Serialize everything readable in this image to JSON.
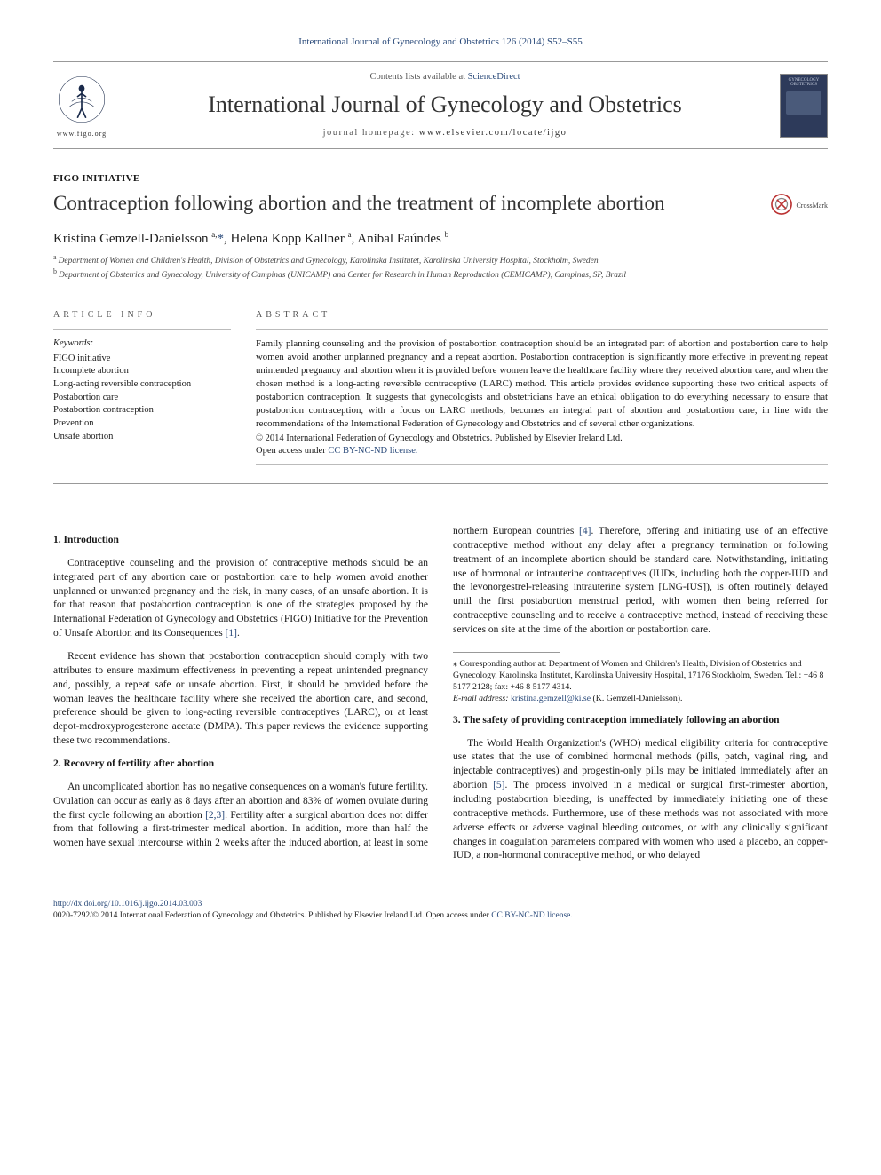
{
  "journal_ref": "International Journal of Gynecology and Obstetrics 126 (2014) S52–S55",
  "masthead": {
    "contents_prefix": "Contents lists available at ",
    "contents_link": "ScienceDirect",
    "journal_title": "International Journal of Gynecology and Obstetrics",
    "homepage_label": "journal homepage: ",
    "homepage_url": "www.elsevier.com/locate/ijgo",
    "figo_url": "www.figo.org",
    "cover_line1": "GYNECOLOGY",
    "cover_line2": "OBSTETRICS"
  },
  "article": {
    "type": "FIGO INITIATIVE",
    "title": "Contraception following abortion and the treatment of incomplete abortion",
    "crossmark_label": "CrossMark",
    "authors_html": "Kristina Gemzell-Danielsson <sup>a,</sup><span class='corr'>*</span>, Helena Kopp Kallner <sup>a</sup>, Anibal Faúndes <sup>b</sup>",
    "affiliations": [
      {
        "marker": "a",
        "text": "Department of Women and Children's Health, Division of Obstetrics and Gynecology, Karolinska Institutet, Karolinska University Hospital, Stockholm, Sweden"
      },
      {
        "marker": "b",
        "text": "Department of Obstetrics and Gynecology, University of Campinas (UNICAMP) and Center for Research in Human Reproduction (CEMICAMP), Campinas, SP, Brazil"
      }
    ]
  },
  "article_info": {
    "heading": "ARTICLE INFO",
    "keywords_label": "Keywords:",
    "keywords": [
      "FIGO initiative",
      "Incomplete abortion",
      "Long-acting reversible contraception",
      "Postabortion care",
      "Postabortion contraception",
      "Prevention",
      "Unsafe abortion"
    ]
  },
  "abstract": {
    "heading": "ABSTRACT",
    "text": "Family planning counseling and the provision of postabortion contraception should be an integrated part of abortion and postabortion care to help women avoid another unplanned pregnancy and a repeat abortion. Postabortion contraception is significantly more effective in preventing repeat unintended pregnancy and abortion when it is provided before women leave the healthcare facility where they received abortion care, and when the chosen method is a long-acting reversible contraceptive (LARC) method. This article provides evidence supporting these two critical aspects of postabortion contraception. It suggests that gynecologists and obstetricians have an ethical obligation to do everything necessary to ensure that postabortion contraception, with a focus on LARC methods, becomes an integral part of abortion and postabortion care, in line with the recommendations of the International Federation of Gynecology and Obstetrics and of several other organizations.",
    "copyright": "© 2014 International Federation of Gynecology and Obstetrics. Published by Elsevier Ireland Ltd.",
    "open_access_prefix": "Open access under ",
    "open_access_link": "CC BY-NC-ND license."
  },
  "sections": {
    "s1": {
      "heading": "1. Introduction",
      "p1": "Contraceptive counseling and the provision of contraceptive methods should be an integrated part of any abortion care or postabortion care to help women avoid another unplanned or unwanted pregnancy and the risk, in many cases, of an unsafe abortion. It is for that reason that postabortion contraception is one of the strategies proposed by the International Federation of Gynecology and Obstetrics (FIGO) Initiative for the Prevention of Unsafe Abortion and its Consequences ",
      "p1_ref": "[1]",
      "p1_tail": ".",
      "p2": "Recent evidence has shown that postabortion contraception should comply with two attributes to ensure maximum effectiveness in preventing a repeat unintended pregnancy and, possibly, a repeat safe or unsafe abortion. First, it should be provided before the woman leaves the healthcare facility where she received the abortion care, and second, preference should be given to long-acting reversible contraceptives (LARC), or at least depot-medroxyprogesterone acetate (DMPA). This paper reviews the evidence supporting these two recommendations."
    },
    "s2": {
      "heading": "2. Recovery of fertility after abortion",
      "p1_a": "An uncomplicated abortion has no negative consequences on a woman's future fertility. Ovulation can occur as early as 8 days after an abortion and 83% of women ovulate during the first cycle following an abortion ",
      "p1_ref1": "[2,3]",
      "p1_b": ". Fertility after a surgical abortion does not differ from that following a first-trimester medical abortion. In addition, more than half the women have sexual intercourse within 2 weeks after the induced abortion, at least in some northern European countries ",
      "p1_ref2": "[4]",
      "p1_c": ". Therefore, offering and initiating use of an effective contraceptive method without any delay after a pregnancy termination or following treatment of an incomplete abortion should be standard care. Notwithstanding, initiating use of hormonal or intrauterine contraceptives (IUDs, including both the copper-IUD and the levonorgestrel-releasing intrauterine system [LNG-IUS]), is often routinely delayed until the first postabortion menstrual period, with women then being referred for contraceptive counseling and to receive a contraceptive method, instead of receiving these services on site at the time of the abortion or postabortion care."
    },
    "s3": {
      "heading": "3. The safety of providing contraception immediately following an abortion",
      "p1_a": "The World Health Organization's (WHO) medical eligibility criteria for contraceptive use states that the use of combined hormonal methods (pills, patch, vaginal ring, and injectable contraceptives) and progestin-only pills may be initiated immediately after an abortion ",
      "p1_ref": "[5]",
      "p1_b": ". The process involved in a medical or surgical first-trimester abortion, including postabortion bleeding, is unaffected by immediately initiating one of these contraceptive methods. Furthermore, use of these methods was not associated with more adverse effects or adverse vaginal bleeding outcomes, or with any clinically significant changes in coagulation parameters compared with women who used a placebo, an copper-IUD, a non-hormonal contraceptive method, or who delayed"
    }
  },
  "footnotes": {
    "corr_label": "⁎ Corresponding author at: Department of Women and Children's Health, Division of Obstetrics and Gynecology, Karolinska Institutet, Karolinska University Hospital, 17176 Stockholm, Sweden. Tel.: +46 8 5177 2128; fax: +46 8 5177 4314.",
    "email_label": "E-mail address: ",
    "email": "kristina.gemzell@ki.se",
    "email_tail": " (K. Gemzell-Danielsson)."
  },
  "footer": {
    "doi": "http://dx.doi.org/10.1016/j.ijgo.2014.03.003",
    "issn_line_a": "0020-7292/© 2014 International Federation of Gynecology and Obstetrics. Published by Elsevier Ireland Ltd. ",
    "issn_oa_prefix": "Open access under ",
    "issn_oa_link": "CC BY-NC-ND license."
  },
  "colors": {
    "link": "#2a4a7a",
    "text": "#1a1a1a",
    "rule": "#999999",
    "cover_bg": "#2d3a5a"
  }
}
